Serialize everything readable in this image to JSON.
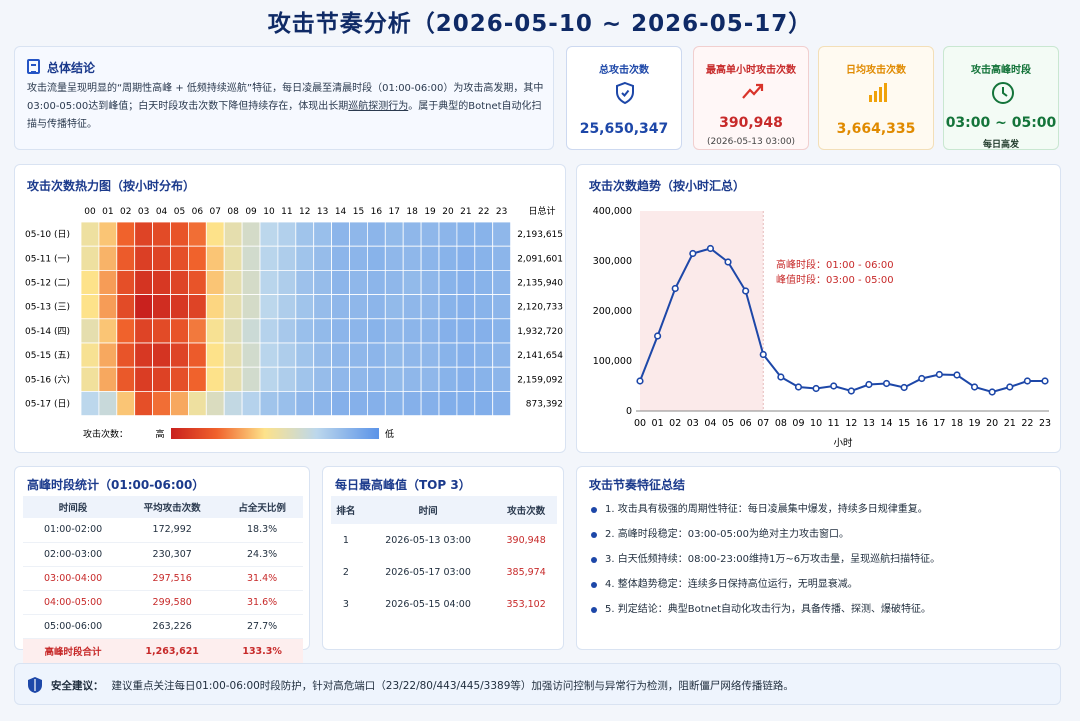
{
  "title": "攻击节奏分析（2026-05-10 ~ 2026-05-17）",
  "summary": {
    "heading": "总体结论",
    "text1": "攻击流量呈现明显的“周期性高峰 + 低频持续巡航”特征，每日凌晨至清晨时段（01:00-06:00）为攻击高发期，其中03:00-05:00达到峰值；白天时段攻击次数下降但持续存在，体现出长期",
    "text_u": "巡航探测行为",
    "text2": "。属于典型的Botnet自动化扫描与传播特征。"
  },
  "kpis": {
    "total": {
      "label": "总攻击次数",
      "value": "25,650,347",
      "icon": "shield-icon",
      "color": "#1d47a8"
    },
    "max_hour": {
      "label": "最高单小时攻击次数",
      "value": "390,948",
      "sub": "(2026-05-13 03:00)",
      "icon": "trend-up-icon",
      "color": "#c72a2a"
    },
    "daily_avg": {
      "label": "日均攻击次数",
      "value": "3,664,335",
      "icon": "bar-chart-icon",
      "color": "#e08a00"
    },
    "peak_period": {
      "label": "攻击高峰时段",
      "value": "03:00 ~ 05:00",
      "sub": "每日高发",
      "icon": "clock-icon",
      "color": "#14743a"
    }
  },
  "heatmap": {
    "title": "攻击次数热力图（按小时分布）",
    "hours": [
      "00",
      "01",
      "02",
      "03",
      "04",
      "05",
      "06",
      "07",
      "08",
      "09",
      "10",
      "11",
      "12",
      "13",
      "14",
      "15",
      "16",
      "17",
      "18",
      "19",
      "20",
      "21",
      "22",
      "23"
    ],
    "total_header": "日总计",
    "rows": [
      {
        "label": "05-10 (日)",
        "total": "2,193,615",
        "v": [
          0.45,
          0.55,
          0.72,
          0.85,
          0.82,
          0.78,
          0.7,
          0.5,
          0.42,
          0.36,
          0.28,
          0.25,
          0.2,
          0.18,
          0.14,
          0.15,
          0.14,
          0.16,
          0.15,
          0.15,
          0.14,
          0.13,
          0.13,
          0.15
        ]
      },
      {
        "label": "05-11 (一)",
        "total": "2,091,601",
        "v": [
          0.45,
          0.58,
          0.75,
          0.87,
          0.85,
          0.8,
          0.72,
          0.55,
          0.43,
          0.35,
          0.27,
          0.24,
          0.2,
          0.17,
          0.14,
          0.14,
          0.13,
          0.15,
          0.15,
          0.14,
          0.13,
          0.12,
          0.13,
          0.14
        ]
      },
      {
        "label": "05-12 (二)",
        "total": "2,135,940",
        "v": [
          0.5,
          0.62,
          0.8,
          0.92,
          0.9,
          0.85,
          0.78,
          0.55,
          0.42,
          0.36,
          0.27,
          0.24,
          0.19,
          0.17,
          0.14,
          0.15,
          0.14,
          0.15,
          0.16,
          0.15,
          0.13,
          0.12,
          0.13,
          0.14
        ]
      },
      {
        "label": "05-13 (三)",
        "total": "2,120,733",
        "v": [
          0.5,
          0.62,
          0.82,
          1.0,
          0.95,
          0.9,
          0.85,
          0.52,
          0.42,
          0.36,
          0.28,
          0.24,
          0.2,
          0.17,
          0.15,
          0.15,
          0.14,
          0.16,
          0.15,
          0.15,
          0.13,
          0.12,
          0.13,
          0.14
        ]
      },
      {
        "label": "05-14 (四)",
        "total": "1,932,720",
        "v": [
          0.42,
          0.55,
          0.72,
          0.85,
          0.82,
          0.78,
          0.68,
          0.48,
          0.4,
          0.33,
          0.26,
          0.22,
          0.18,
          0.16,
          0.14,
          0.14,
          0.13,
          0.15,
          0.14,
          0.14,
          0.12,
          0.12,
          0.12,
          0.13
        ]
      },
      {
        "label": "05-15 (五)",
        "total": "2,141,654",
        "v": [
          0.48,
          0.6,
          0.78,
          0.9,
          0.92,
          0.85,
          0.75,
          0.5,
          0.42,
          0.35,
          0.27,
          0.24,
          0.2,
          0.17,
          0.15,
          0.15,
          0.14,
          0.16,
          0.15,
          0.15,
          0.13,
          0.12,
          0.13,
          0.14
        ]
      },
      {
        "label": "05-16 (六)",
        "total": "2,159,092",
        "v": [
          0.46,
          0.6,
          0.76,
          0.88,
          0.86,
          0.8,
          0.72,
          0.5,
          0.42,
          0.35,
          0.27,
          0.24,
          0.2,
          0.17,
          0.15,
          0.15,
          0.14,
          0.16,
          0.15,
          0.15,
          0.13,
          0.12,
          0.13,
          0.14
        ]
      },
      {
        "label": "05-17 (日)",
        "total": "873,392",
        "v": [
          0.28,
          0.32,
          0.55,
          0.8,
          0.7,
          0.6,
          0.45,
          0.38,
          0.3,
          0.26,
          0.2,
          0.18,
          0.15,
          0.14,
          0.12,
          0.12,
          0.12,
          0.13,
          0.12,
          0.12,
          0.11,
          0.11,
          0.11,
          0.12
        ]
      }
    ],
    "legend_label": "攻击次数：",
    "legend_high": "高",
    "legend_low": "低"
  },
  "line_chart": {
    "title": "攻击次数趋势（按小时汇总）",
    "annotation1": "高峰时段：01:00 - 06:00",
    "annotation2": "峰值时段：03:00 - 05:00",
    "xlabel": "小时"
  },
  "chart_data": {
    "type": "line",
    "x": [
      "00",
      "01",
      "02",
      "03",
      "04",
      "05",
      "06",
      "07",
      "08",
      "09",
      "10",
      "11",
      "12",
      "13",
      "14",
      "15",
      "16",
      "17",
      "18",
      "19",
      "20",
      "21",
      "22",
      "23"
    ],
    "values": [
      60000,
      150000,
      245000,
      315000,
      325000,
      298000,
      240000,
      113000,
      68000,
      48000,
      45000,
      50000,
      40000,
      53000,
      55000,
      47000,
      65000,
      73000,
      72000,
      48000,
      38000,
      48000,
      60000,
      60000
    ],
    "ylim": [
      0,
      400000
    ],
    "yticks": [
      "0",
      "100,000",
      "200,000",
      "300,000",
      "400,000"
    ],
    "highlight_range": [
      "00",
      "07"
    ],
    "line_color": "#1d47a8",
    "grid": false
  },
  "peak_stats": {
    "title": "高峰时段统计（01:00-06:00）",
    "headers": [
      "时间段",
      "平均攻击次数",
      "占全天比例"
    ],
    "rows": [
      [
        "01:00-02:00",
        "172,992",
        "18.3%"
      ],
      [
        "02:00-03:00",
        "230,307",
        "24.3%"
      ],
      [
        "03:00-04:00",
        "297,516",
        "31.4%"
      ],
      [
        "04:00-05:00",
        "299,580",
        "31.6%"
      ],
      [
        "05:00-06:00",
        "263,226",
        "27.7%"
      ]
    ],
    "total": [
      "高峰时段合计",
      "1,263,621",
      "133.3%"
    ]
  },
  "top3": {
    "title": "每日最高峰值（TOP 3）",
    "headers": [
      "排名",
      "时间",
      "攻击次数"
    ],
    "rows": [
      [
        "1",
        "2026-05-13 03:00",
        "390,948"
      ],
      [
        "2",
        "2026-05-17 03:00",
        "385,974"
      ],
      [
        "3",
        "2026-05-15 04:00",
        "353,102"
      ]
    ]
  },
  "features": {
    "title": "攻击节奏特征总结",
    "items": [
      "1. 攻击具有极强的周期性特征：每日凌晨集中爆发，持续多日规律重复。",
      "2. 高峰时段稳定：03:00-05:00为绝对主力攻击窗口。",
      "3. 白天低频持续：08:00-23:00维持1万~6万攻击量，呈现巡航扫描特征。",
      "4. 整体趋势稳定：连续多日保持高位运行，无明显衰减。",
      "5. 判定结论：典型Botnet自动化攻击行为，具备传播、探测、爆破特征。"
    ]
  },
  "advice": {
    "label": "安全建议：",
    "text": "建议重点关注每日01:00-06:00时段防护，针对高危端口（23/22/80/443/445/3389等）加强访问控制与异常行为检测，阻断僵尸网络传播链路。"
  }
}
